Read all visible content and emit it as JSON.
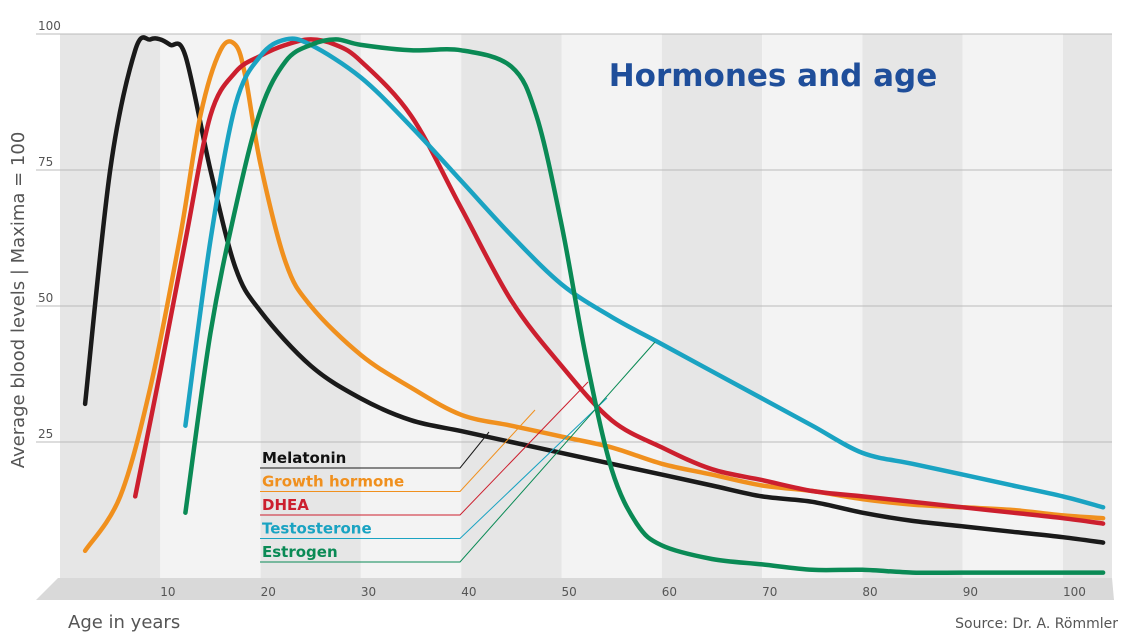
{
  "chart_data": {
    "type": "line",
    "title": "Hormones and age",
    "xlabel": "Age in years",
    "ylabel": "Average blood levels | Maxima = 100",
    "source": "Source: Dr. A. Römmler",
    "xlim": [
      0,
      105
    ],
    "ylim": [
      0,
      100
    ],
    "x_ticks": [
      10,
      20,
      30,
      40,
      50,
      60,
      70,
      80,
      90,
      100
    ],
    "y_ticks": [
      25,
      50,
      75,
      100
    ],
    "grid": "horizontal lines at 25, 50, 75, 100; alternating vertical bands",
    "legend_position": "center-left, with leader lines to curves",
    "colors": {
      "melatonin": "#1a1a1a",
      "growth_hormone": "#f0901e",
      "dhea": "#cc1f2e",
      "testosterone": "#1aa3c2",
      "estrogen": "#0a8a55",
      "title": "#1f4e9a",
      "band": "#e6e6e6",
      "grid": "#bbbbbb"
    },
    "series": [
      {
        "name": "Melatonin",
        "color": "#1a1a1a",
        "x": [
          2.5,
          5,
          7.5,
          9,
          10,
          11,
          12.5,
          15,
          17.5,
          20,
          25,
          30,
          35,
          40,
          45,
          50,
          55,
          60,
          65,
          70,
          75,
          80,
          85,
          90,
          95,
          100,
          104
        ],
        "y": [
          32,
          75,
          97,
          99,
          99,
          98,
          96,
          75,
          57,
          49,
          39,
          33,
          29,
          27,
          25,
          23,
          21,
          19,
          17,
          15,
          14,
          12,
          10.5,
          9.5,
          8.5,
          7.5,
          6.5
        ]
      },
      {
        "name": "Growth hormone",
        "color": "#f0901e",
        "x": [
          2.5,
          6,
          9,
          12,
          14,
          16,
          17.5,
          18.5,
          20,
          22.5,
          25,
          30,
          35,
          40,
          45,
          50,
          55,
          60,
          65,
          70,
          75,
          80,
          85,
          90,
          95,
          100,
          104
        ],
        "y": [
          5,
          15,
          35,
          63,
          85,
          97,
          98,
          92,
          76,
          58,
          50,
          41,
          35,
          30,
          28,
          26,
          24,
          21,
          19,
          17,
          16,
          14.5,
          13.5,
          13,
          12.5,
          11.5,
          11
        ]
      },
      {
        "name": "DHEA",
        "color": "#cc1f2e",
        "x": [
          7.5,
          10,
          12.5,
          15,
          17.5,
          20,
          22.5,
          25,
          27.5,
          30,
          35,
          40,
          45,
          50,
          55,
          60,
          65,
          70,
          75,
          80,
          85,
          90,
          95,
          100,
          104
        ],
        "y": [
          15,
          38,
          62,
          85,
          93,
          96,
          98,
          99,
          98,
          95,
          85,
          68,
          51,
          39,
          29,
          24,
          20,
          18,
          16,
          15,
          14,
          13,
          12,
          11,
          10
        ]
      },
      {
        "name": "Testosterone",
        "color": "#1aa3c2",
        "x": [
          12.5,
          15,
          17.5,
          20,
          22.5,
          25,
          30,
          35,
          40,
          45,
          50,
          55,
          60,
          65,
          70,
          75,
          80,
          85,
          90,
          95,
          100,
          104
        ],
        "y": [
          28,
          62,
          87,
          96,
          99,
          98,
          92,
          83,
          73,
          63,
          54,
          48,
          43,
          38,
          33,
          28,
          23,
          21,
          19,
          17,
          15,
          13
        ]
      },
      {
        "name": "Estrogen",
        "color": "#0a8a55",
        "x": [
          12.5,
          15,
          17.5,
          20,
          22.5,
          25,
          27.5,
          30,
          35,
          40,
          45,
          47.5,
          50,
          52.5,
          55,
          57.5,
          60,
          65,
          70,
          75,
          80,
          85,
          90,
          95,
          100,
          104
        ],
        "y": [
          12,
          45,
          68,
          86,
          95,
          98,
          99,
          98,
          97,
          97,
          94,
          85,
          65,
          40,
          20,
          10,
          6,
          3.5,
          2.5,
          1.5,
          1.5,
          1,
          1,
          1,
          1,
          1
        ]
      }
    ]
  }
}
